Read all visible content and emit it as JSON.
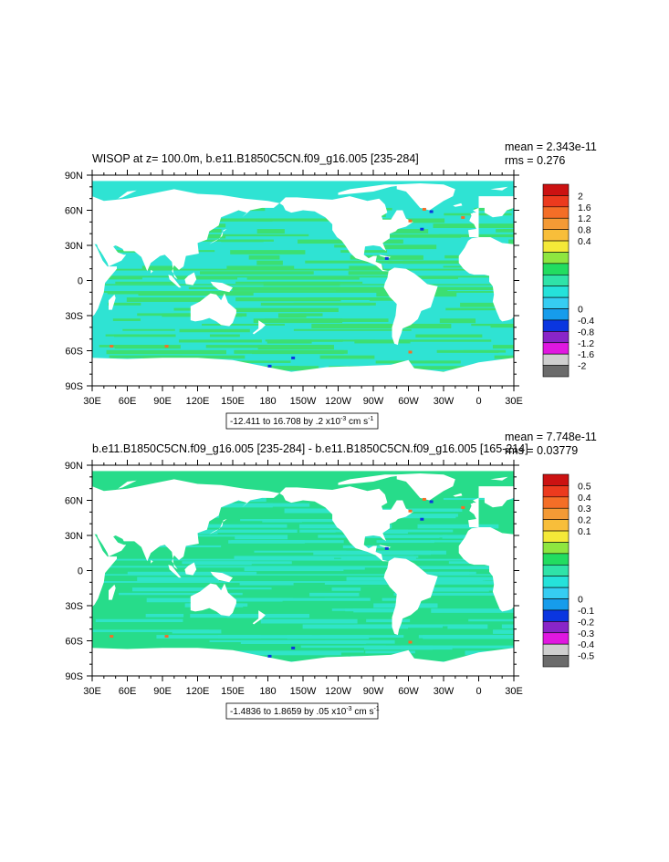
{
  "chart_data": [
    {
      "type": "heatmap",
      "title": "WISOP at z= 100.0m, b.e11.B1850C5CN.f09_g16.005 [235-284]",
      "stats": [
        "mean = 2.343e-11",
        "rms = 0.276"
      ],
      "x_ticks": [
        "30E",
        "60E",
        "90E",
        "120E",
        "150E",
        "180",
        "150W",
        "120W",
        "90W",
        "60W",
        "30W",
        "0",
        "30E"
      ],
      "y_ticks": [
        "90N",
        "60N",
        "30N",
        "0",
        "30S",
        "60S",
        "90S"
      ],
      "xlim": [
        30,
        390
      ],
      "ylim": [
        -90,
        90
      ],
      "range_label": "-12.411 to 16.708 by .2 x10",
      "range_exp": "-3",
      "range_units": " cm s",
      "range_units_exp": "-1",
      "colorbar": {
        "labels": [
          "2",
          "1.6",
          "1.2",
          "0.8",
          "0.4",
          "0",
          "-0.4",
          "-0.8",
          "-1.2",
          "-1.6",
          "-2"
        ],
        "colors": [
          "#cc1212",
          "#ec3a1e",
          "#f46e27",
          "#f49a35",
          "#f8be3a",
          "#f4e938",
          "#8ee640",
          "#22dc60",
          "#2fe3a8",
          "#25e2da",
          "#36cdf2",
          "#169ceb",
          "#0a36e0",
          "#8a25c8",
          "#e018e0",
          "#cfcfcf",
          "#6b6b6b"
        ]
      },
      "field_colors": {
        "main": "#2fe3d3",
        "band": "#3cdf72",
        "pos": "#f46e27",
        "neg": "#0a36e0"
      }
    },
    {
      "type": "heatmap",
      "title": "b.e11.B1850C5CN.f09_g16.005 [235-284] - b.e11.B1850C5CN.f09_g16.005 [165-214]",
      "stats": [
        "mean = 7.748e-11",
        "rms = 0.03779"
      ],
      "x_ticks": [
        "30E",
        "60E",
        "90E",
        "120E",
        "150E",
        "180",
        "150W",
        "120W",
        "90W",
        "60W",
        "30W",
        "0",
        "30E"
      ],
      "y_ticks": [
        "90N",
        "60N",
        "30N",
        "0",
        "30S",
        "60S",
        "90S"
      ],
      "xlim": [
        30,
        390
      ],
      "ylim": [
        -90,
        90
      ],
      "range_label": "-1.4836 to 1.8659 by .05 x10",
      "range_exp": "-3",
      "range_units": " cm s",
      "range_units_exp": "-1",
      "colorbar": {
        "labels": [
          "0.5",
          "0.4",
          "0.3",
          "0.2",
          "0.1",
          "0",
          "-0.1",
          "-0.2",
          "-0.3",
          "-0.4",
          "-0.5"
        ],
        "colors": [
          "#cc1212",
          "#ec3a1e",
          "#f46e27",
          "#f49a35",
          "#f8be3a",
          "#f4e938",
          "#8ee640",
          "#22dc60",
          "#2fe3a8",
          "#25e2da",
          "#36cdf2",
          "#169ceb",
          "#0a36e0",
          "#8a25c8",
          "#e018e0",
          "#cfcfcf",
          "#6b6b6b"
        ]
      },
      "field_colors": {
        "main": "#27dc8a",
        "band": "#30e4c8",
        "pos": "#f46e27",
        "neg": "#0a36e0"
      }
    }
  ]
}
